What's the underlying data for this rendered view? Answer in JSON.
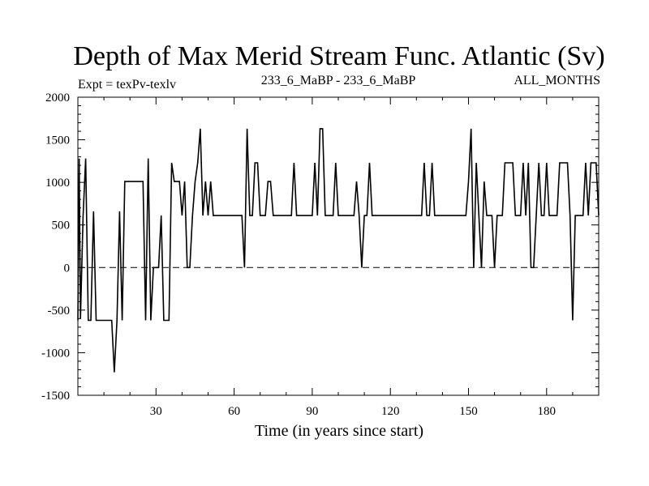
{
  "chart_data": {
    "type": "line",
    "title": "Depth of Max Merid Stream Func. Atlantic (Sv)",
    "subtitle_left": "Expt = texPv-texlv",
    "subtitle_center": "233_6_MaBP - 233_6_MaBP",
    "subtitle_right": "ALL_MONTHS",
    "xlabel": "Time (in years since start)",
    "ylabel": "",
    "xlim": [
      0,
      200
    ],
    "ylim": [
      -1500,
      2000
    ],
    "xticks": [
      30,
      60,
      90,
      120,
      150,
      180
    ],
    "yticks": [
      -1500,
      -1000,
      -500,
      0,
      500,
      1000,
      1500,
      2000
    ],
    "reference_line": {
      "y": 0,
      "style": "dashed"
    },
    "series": [
      {
        "name": "Depth of Max Merid Stream Func",
        "x": [
          0,
          0.5,
          1,
          2,
          3,
          4,
          5,
          6,
          7,
          8,
          9,
          10,
          11,
          12,
          13,
          14,
          15,
          16,
          17,
          18,
          19,
          20,
          21,
          22,
          23,
          24,
          25,
          26,
          27,
          28,
          29,
          30,
          31,
          32,
          33,
          34,
          35,
          36,
          37,
          38,
          39,
          40,
          41,
          42,
          43,
          44,
          45,
          46,
          47,
          48,
          49,
          50,
          51,
          52,
          53,
          54,
          55,
          56,
          57,
          58,
          59,
          60,
          61,
          62,
          63,
          64,
          65,
          66,
          67,
          68,
          69,
          70,
          71,
          72,
          73,
          74,
          75,
          76,
          77,
          78,
          79,
          80,
          81,
          82,
          83,
          84,
          85,
          86,
          87,
          88,
          89,
          90,
          91,
          92,
          93,
          94,
          95,
          96,
          97,
          98,
          99,
          100,
          101,
          102,
          103,
          104,
          105,
          106,
          107,
          108,
          109,
          110,
          111,
          112,
          113,
          114,
          115,
          116,
          117,
          118,
          119,
          120,
          121,
          122,
          123,
          124,
          125,
          126,
          127,
          128,
          129,
          130,
          131,
          132,
          133,
          134,
          135,
          136,
          137,
          138,
          139,
          140,
          141,
          142,
          143,
          144,
          145,
          146,
          147,
          148,
          149,
          150,
          151,
          152,
          153,
          154,
          155,
          156,
          157,
          158,
          159,
          160,
          161,
          162,
          163,
          164,
          165,
          166,
          167,
          168,
          169,
          170,
          171,
          172,
          173,
          174,
          175,
          176,
          177,
          178,
          179,
          180,
          181,
          182,
          183,
          184,
          185,
          186,
          187,
          188,
          189,
          190,
          191,
          192,
          193,
          194,
          195,
          196,
          197,
          198,
          199,
          200
        ],
        "values": [
          -620,
          1280,
          -600,
          600,
          1280,
          -620,
          -620,
          660,
          -620,
          -620,
          -620,
          -620,
          -620,
          -620,
          -620,
          -1230,
          -620,
          660,
          -620,
          1010,
          1010,
          1010,
          1010,
          1010,
          1010,
          1010,
          1010,
          -620,
          1280,
          -620,
          0,
          0,
          0,
          610,
          -620,
          -620,
          -620,
          1230,
          1010,
          1010,
          1010,
          610,
          1010,
          0,
          0,
          600,
          1010,
          1230,
          1630,
          610,
          1010,
          610,
          1010,
          610,
          610,
          610,
          610,
          610,
          610,
          610,
          610,
          610,
          610,
          610,
          610,
          0,
          1630,
          610,
          610,
          1230,
          1230,
          610,
          610,
          610,
          1010,
          1010,
          610,
          610,
          610,
          610,
          610,
          610,
          610,
          610,
          1230,
          610,
          610,
          610,
          610,
          610,
          610,
          610,
          1230,
          610,
          1630,
          1630,
          610,
          610,
          610,
          610,
          1230,
          610,
          610,
          610,
          610,
          610,
          610,
          610,
          1010,
          610,
          0,
          610,
          610,
          1230,
          610,
          610,
          610,
          610,
          610,
          610,
          610,
          610,
          610,
          610,
          610,
          610,
          610,
          610,
          610,
          610,
          610,
          610,
          610,
          610,
          1230,
          610,
          610,
          1230,
          610,
          610,
          610,
          610,
          610,
          610,
          610,
          610,
          610,
          610,
          610,
          610,
          610,
          1010,
          1630,
          0,
          1230,
          610,
          0,
          1010,
          610,
          610,
          610,
          0,
          610,
          610,
          610,
          1230,
          1230,
          1230,
          1230,
          610,
          610,
          610,
          1230,
          610,
          1230,
          0,
          0,
          610,
          1230,
          610,
          610,
          1230,
          610,
          610,
          610,
          610,
          1230,
          1230,
          1230,
          1230,
          610,
          -620,
          610,
          610,
          610,
          610,
          1230,
          610,
          1230,
          1230,
          1230,
          610
        ]
      }
    ]
  }
}
